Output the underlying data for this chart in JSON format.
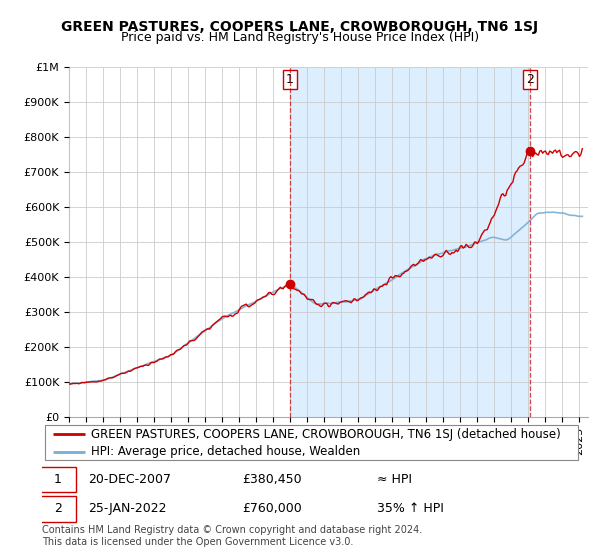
{
  "title": "GREEN PASTURES, COOPERS LANE, CROWBOROUGH, TN6 1SJ",
  "subtitle": "Price paid vs. HM Land Registry's House Price Index (HPI)",
  "ylim": [
    0,
    1000000
  ],
  "xlim_start": 1995.0,
  "xlim_end": 2025.5,
  "yticks": [
    0,
    100000,
    200000,
    300000,
    400000,
    500000,
    600000,
    700000,
    800000,
    900000,
    1000000
  ],
  "ytick_labels": [
    "£0",
    "£100K",
    "£200K",
    "£300K",
    "£400K",
    "£500K",
    "£600K",
    "£700K",
    "£800K",
    "£900K",
    "£1M"
  ],
  "hpi_color": "#7aadd4",
  "price_color": "#cc0000",
  "vline_color": "#cc0000",
  "shade_color": "#ddeeff",
  "marker_color": "#cc0000",
  "point1_x": 2007.97,
  "point1_y": 380450,
  "point2_x": 2022.07,
  "point2_y": 760000,
  "legend_label_red": "GREEN PASTURES, COOPERS LANE, CROWBOROUGH, TN6 1SJ (detached house)",
  "legend_label_blue": "HPI: Average price, detached house, Wealden",
  "table_row1_num": "1",
  "table_row1_date": "20-DEC-2007",
  "table_row1_price": "£380,450",
  "table_row1_hpi": "≈ HPI",
  "table_row2_num": "2",
  "table_row2_date": "25-JAN-2022",
  "table_row2_price": "£760,000",
  "table_row2_hpi": "35% ↑ HPI",
  "footer": "Contains HM Land Registry data © Crown copyright and database right 2024.\nThis data is licensed under the Open Government Licence v3.0.",
  "background_color": "#ffffff",
  "grid_color": "#cccccc",
  "title_fontsize": 10,
  "subtitle_fontsize": 9,
  "tick_fontsize": 8,
  "legend_fontsize": 8.5,
  "footer_fontsize": 7
}
